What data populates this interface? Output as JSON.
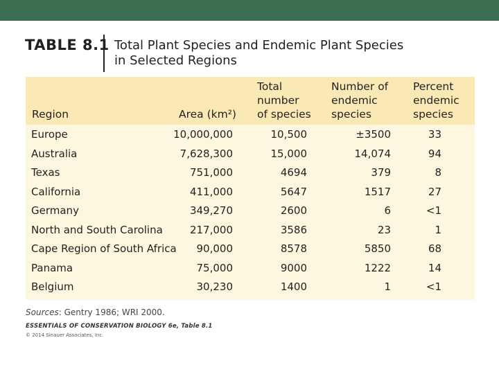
{
  "table_label": "TABLE 8.1",
  "title": {
    "line1": "Total Plant Species and Endemic Plant Species",
    "line2": "in Selected Regions"
  },
  "headers": {
    "region": "Region",
    "area": "Area (km²)",
    "total": [
      "Total",
      "number",
      "of species"
    ],
    "endemic": [
      "Number of",
      "endemic",
      "species"
    ],
    "percent": [
      "Percent",
      "endemic",
      "species"
    ]
  },
  "rows": [
    {
      "region": "Europe",
      "area": "10,000,000",
      "total": "10,500",
      "endemic": "±3500",
      "percent": "33"
    },
    {
      "region": "Australia",
      "area": "7,628,300",
      "total": "15,000",
      "endemic": "14,074",
      "percent": "94"
    },
    {
      "region": "Texas",
      "area": "751,000",
      "total": "4694",
      "endemic": "379",
      "percent": "8"
    },
    {
      "region": "California",
      "area": "411,000",
      "total": "5647",
      "endemic": "1517",
      "percent": "27"
    },
    {
      "region": "Germany",
      "area": "349,270",
      "total": "2600",
      "endemic": "6",
      "percent": "<1"
    },
    {
      "region": "North and South Carolina",
      "area": "217,000",
      "total": "3586",
      "endemic": "23",
      "percent": "1"
    },
    {
      "region": "Cape Region of South Africa",
      "area": "90,000",
      "total": "8578",
      "endemic": "5850",
      "percent": "68"
    },
    {
      "region": "Panama",
      "area": "75,000",
      "total": "9000",
      "endemic": "1222",
      "percent": "14"
    },
    {
      "region": "Belgium",
      "area": "30,230",
      "total": "1400",
      "endemic": "1",
      "percent": "<1"
    }
  ],
  "sources": {
    "label": "Sources",
    "text": ": Gentry 1986; WRI 2000."
  },
  "book_credit": "ESSENTIALS OF CONSERVATION BIOLOGY 6e, Table 8.1",
  "copyright": "© 2014 Sinauer Associates, Inc.",
  "colors": {
    "bar": "#3d6e52",
    "header_bg": "#fae9b4",
    "body_bg": "#fdf7df"
  }
}
